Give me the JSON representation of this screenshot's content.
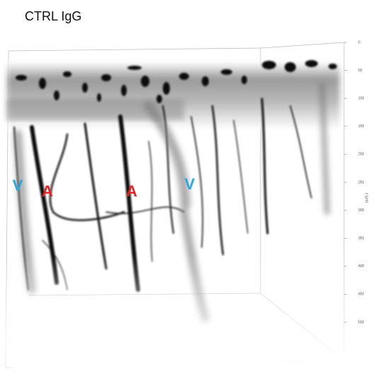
{
  "title": "CTRL IgG",
  "labels": [
    "V",
    "A",
    "A",
    "V"
  ],
  "z_axis": {
    "label": "z (µm)",
    "ticks": [
      "0",
      "50",
      "100",
      "150",
      "200",
      "250",
      "300",
      "350",
      "400",
      "450",
      "500"
    ]
  }
}
